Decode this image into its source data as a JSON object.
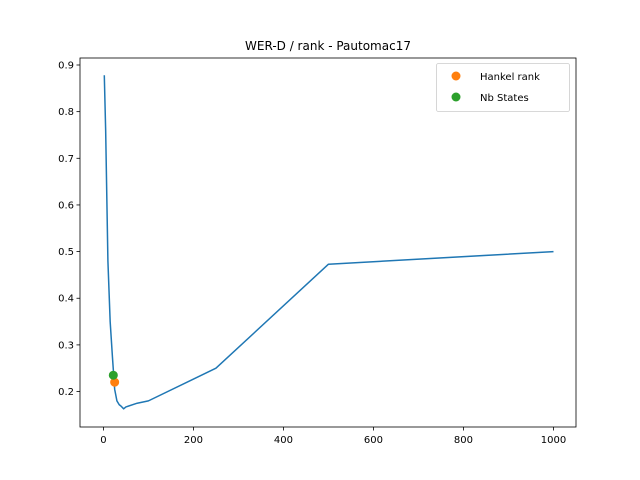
{
  "chart_data": {
    "type": "line",
    "title": "WER-D / rank - Pautomac17",
    "xlabel": "",
    "ylabel": "",
    "xlim": [
      -52,
      1050
    ],
    "ylim": [
      0.124,
      0.915
    ],
    "x_ticks": [
      0,
      200,
      400,
      600,
      800,
      1000
    ],
    "y_ticks": [
      0.2,
      0.3,
      0.4,
      0.5,
      0.6,
      0.7,
      0.8,
      0.9
    ],
    "x_tick_labels": [
      "0",
      "200",
      "400",
      "600",
      "800",
      "1000"
    ],
    "y_tick_labels": [
      "0.2",
      "0.3",
      "0.4",
      "0.5",
      "0.6",
      "0.7",
      "0.8",
      "0.9"
    ],
    "grid": false,
    "legend_position": "top-right",
    "series": [
      {
        "kind": "line",
        "color": "#1f77b4",
        "x": [
          2,
          5,
          10,
          15,
          20,
          25,
          30,
          35,
          40,
          45,
          50,
          75,
          100,
          250,
          500,
          1000
        ],
        "y": [
          0.878,
          0.76,
          0.48,
          0.35,
          0.275,
          0.205,
          0.18,
          0.172,
          0.168,
          0.163,
          0.167,
          0.175,
          0.18,
          0.25,
          0.473,
          0.5
        ]
      },
      {
        "kind": "point",
        "name": "Hankel rank",
        "color": "#ff7f0e",
        "x": [
          25
        ],
        "y": [
          0.22
        ]
      },
      {
        "kind": "point",
        "name": "Nb States",
        "color": "#2ca02c",
        "x": [
          22
        ],
        "y": [
          0.235
        ]
      }
    ]
  }
}
